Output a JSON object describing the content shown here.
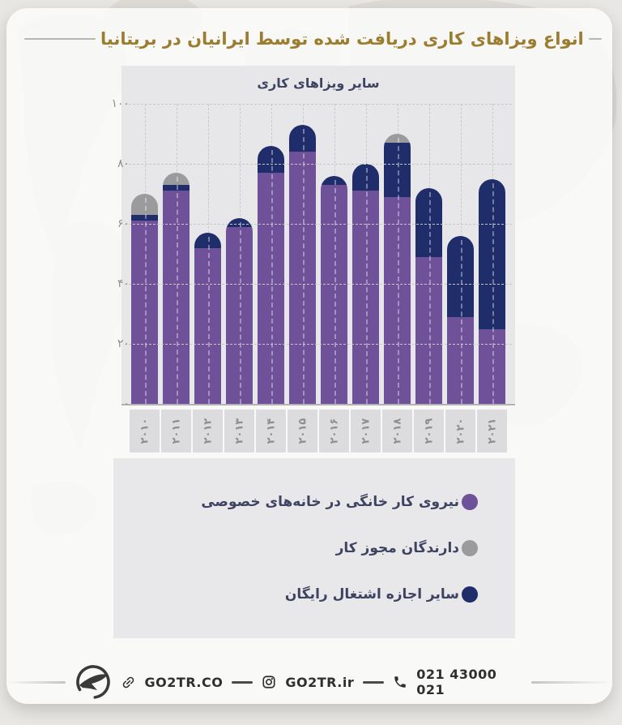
{
  "page": {
    "title": "انواع ویزاهای کاری دریافت شده توسط ایرانیان در بریتانیا"
  },
  "chart_data": {
    "type": "bar",
    "stacked": true,
    "title": "سایر ویزاهای کاری",
    "categories": [
      "۲۰۱۰",
      "۲۰۱۱",
      "۲۰۱۲",
      "۲۰۱۳",
      "۲۰۱۴",
      "۲۰۱۵",
      "۲۰۱۶",
      "۲۰۱۷",
      "۲۰۱۸",
      "۲۰۱۹",
      "۲۰۲۰",
      "۲۰۲۱"
    ],
    "categories_western": [
      "2010",
      "2011",
      "2012",
      "2013",
      "2014",
      "2015",
      "2016",
      "2017",
      "2018",
      "2019",
      "2020",
      "2021"
    ],
    "series": [
      {
        "name": "نیروی کار خانگی در خانه‌های خصوصی",
        "color": "#6e5198",
        "values": [
          61,
          71,
          52,
          59,
          77,
          84,
          73,
          71,
          69,
          49,
          29,
          25
        ]
      },
      {
        "name": "سایر اجازه اشتغال رایگان",
        "color": "#1f2d6b",
        "values": [
          2,
          2,
          5,
          3,
          9,
          9,
          3,
          9,
          18,
          23,
          27,
          50
        ]
      },
      {
        "name": "دارندگان مجوز کار",
        "color": "#9b9b9e",
        "values": [
          7,
          4,
          0,
          0,
          0,
          0,
          0,
          0,
          3,
          0,
          0,
          0
        ]
      }
    ],
    "stack_order_bottom_to_top": [
      "نیروی کار خانگی در خانه‌های خصوصی",
      "سایر اجازه اشتغال رایگان",
      "دارندگان مجوز کار"
    ],
    "totals": [
      70,
      77,
      57,
      62,
      86,
      93,
      76,
      80,
      90,
      72,
      56,
      75
    ],
    "ylim": [
      0,
      100
    ],
    "y_ticks": [
      {
        "value": 100,
        "label": "۱۰۰"
      },
      {
        "value": 80,
        "label": "۸۰"
      },
      {
        "value": 60,
        "label": "۶۰"
      },
      {
        "value": 40,
        "label": "۴۰"
      },
      {
        "value": 20,
        "label": "۲۰"
      },
      {
        "value": 0,
        "label": "۰"
      }
    ],
    "grid": "dashed",
    "legend_position": "bottom"
  },
  "legend": {
    "items": [
      {
        "label": "نیروی کار خانگی در خانه‌های خصوصی",
        "color": "#6e5198"
      },
      {
        "label": "دارندگان مجوز کار",
        "color": "#9b9b9e"
      },
      {
        "label": "سایر اجازه اشتغال رایگان",
        "color": "#1f2d6b"
      }
    ]
  },
  "footer": {
    "brand": "GO2TR",
    "website": "GO2TR.CO",
    "instagram": "GO2TR.ir",
    "phone": "021 43000 021"
  },
  "colors": {
    "title_gold": "#9c7c2e",
    "panel_gray": "#e7e7e9",
    "label_box_gray": "#dcdcde",
    "tick_text": "#8f8f92",
    "navy_text": "#3e4563",
    "footer_dark": "#2f2f2f"
  }
}
